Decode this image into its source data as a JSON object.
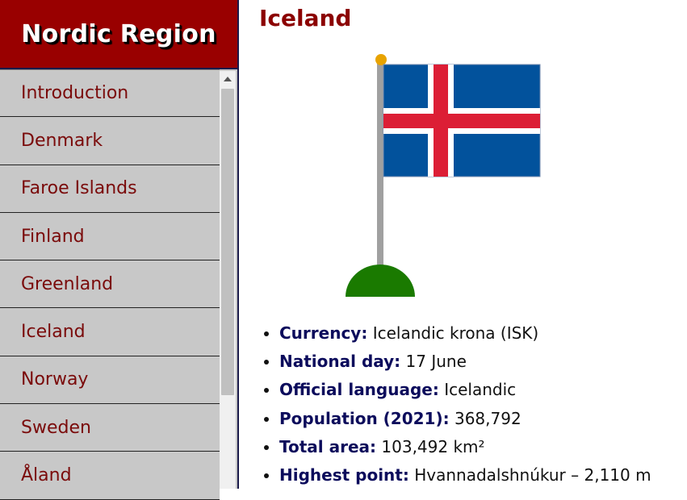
{
  "sidebar": {
    "title": "Nordic Region",
    "items": [
      {
        "label": "Introduction"
      },
      {
        "label": "Denmark"
      },
      {
        "label": "Faroe Islands"
      },
      {
        "label": "Finland"
      },
      {
        "label": "Greenland"
      },
      {
        "label": "Iceland"
      },
      {
        "label": "Norway"
      },
      {
        "label": "Sweden"
      },
      {
        "label": "Åland"
      }
    ]
  },
  "main": {
    "title": "Iceland",
    "flag": {
      "field_color": "#02529c",
      "cross_outer_color": "#ffffff",
      "cross_inner_color": "#dc1e35",
      "pole_color": "#a0a0a0",
      "finial_color": "#e8a300",
      "base_color": "#1a7a00"
    },
    "facts": [
      {
        "label": "Currency:",
        "value": "Icelandic krona (ISK)"
      },
      {
        "label": "National day:",
        "value": "17 June"
      },
      {
        "label": "Official language:",
        "value": "Icelandic"
      },
      {
        "label": "Population (2021):",
        "value": "368,792"
      },
      {
        "label": "Total area:",
        "value": "103,492 km²"
      },
      {
        "label": "Highest point:",
        "value": "Hvannadalshnúkur – 2,110 m"
      }
    ]
  }
}
